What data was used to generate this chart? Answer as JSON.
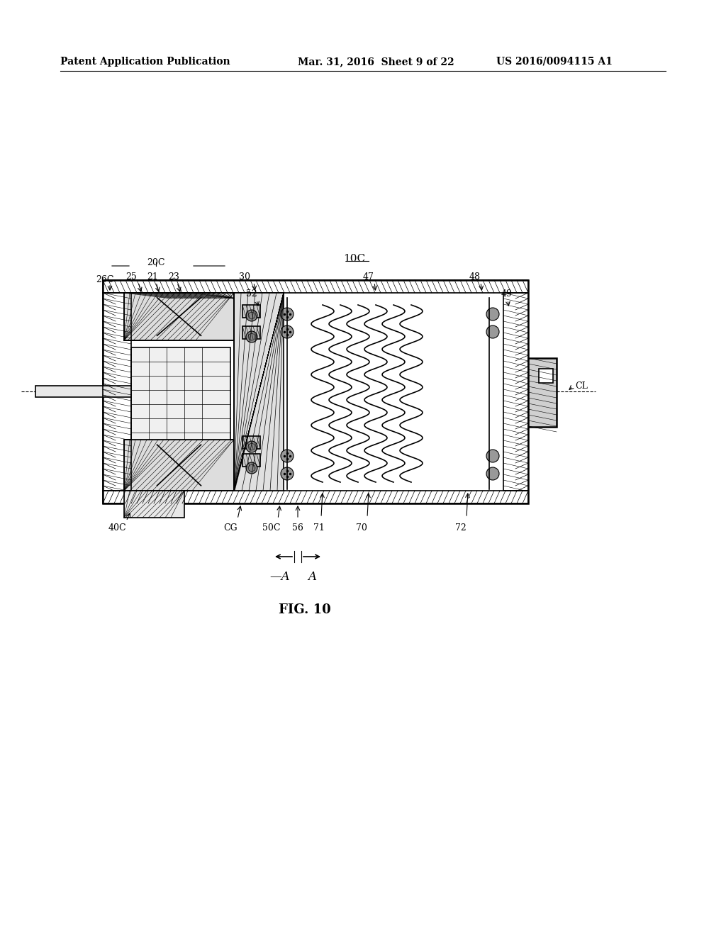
{
  "bg_color": "#ffffff",
  "header_left": "Patent Application Publication",
  "header_mid": "Mar. 31, 2016  Sheet 9 of 22",
  "header_right": "US 2016/0094115 A1",
  "fig_label": "FIG. 10",
  "title_label": "10C",
  "page_width": 10.24,
  "page_height": 13.2
}
